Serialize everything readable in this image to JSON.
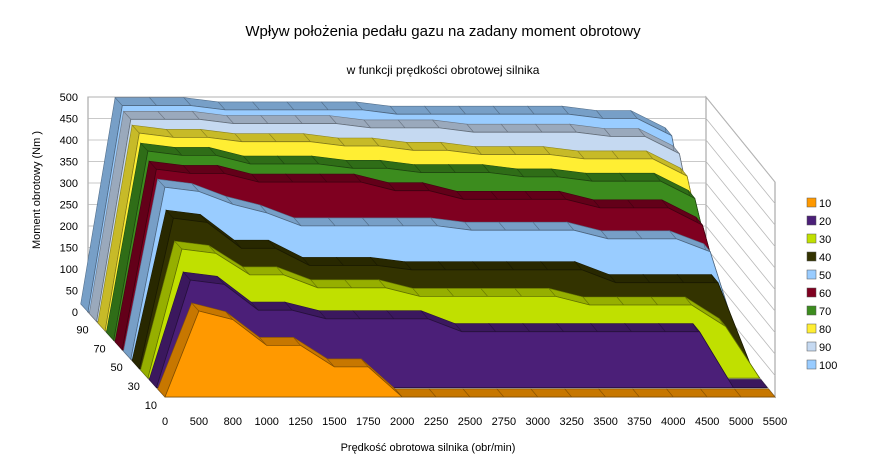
{
  "chart_data": {
    "type": "area-3d",
    "title": "Wpływ położenia pedału gazu na zadany moment obrotowy",
    "subtitle": "w funkcji prędkości obrotowej silnika",
    "xlabel": "Prędkość obrotowa silnika (obr/min)",
    "ylabel": "Moment obrotowy (Nm )",
    "zlabel": "",
    "categories": [
      "0",
      "500",
      "800",
      "1000",
      "1250",
      "1500",
      "1750",
      "2000",
      "2250",
      "2500",
      "2750",
      "3000",
      "3250",
      "3500",
      "3750",
      "4000",
      "4500",
      "5000",
      "5500"
    ],
    "ylim": [
      0,
      500
    ],
    "yticks": [
      "0",
      "50",
      "100",
      "150",
      "200",
      "250",
      "300",
      "350",
      "400",
      "450",
      "500"
    ],
    "depth_ticks": [
      "10",
      "30",
      "50",
      "70",
      "90"
    ],
    "series": [
      {
        "name": "10",
        "color": "#FF9900",
        "values": [
          0,
          200,
          180,
          120,
          120,
          70,
          70,
          0,
          0,
          0,
          0,
          0,
          0,
          0,
          0,
          0,
          0,
          0,
          0
        ]
      },
      {
        "name": "20",
        "color": "#4B1F78",
        "values": [
          0,
          250,
          240,
          180,
          180,
          160,
          160,
          160,
          160,
          130,
          130,
          130,
          130,
          130,
          130,
          130,
          130,
          0,
          0
        ]
      },
      {
        "name": "30",
        "color": "#C0E000",
        "values": [
          0,
          300,
          290,
          240,
          240,
          210,
          210,
          210,
          190,
          190,
          190,
          190,
          190,
          170,
          170,
          170,
          170,
          120,
          0
        ]
      },
      {
        "name": "40",
        "color": "#333300",
        "values": [
          0,
          350,
          340,
          280,
          280,
          240,
          240,
          240,
          230,
          230,
          230,
          230,
          230,
          230,
          200,
          200,
          200,
          200,
          0
        ]
      },
      {
        "name": "50",
        "color": "#99CCFF",
        "values": [
          0,
          400,
          390,
          360,
          340,
          310,
          310,
          310,
          310,
          310,
          300,
          300,
          300,
          300,
          280,
          280,
          280,
          250,
          0
        ]
      },
      {
        "name": "60",
        "color": "#7F0020",
        "values": [
          0,
          420,
          410,
          410,
          390,
          390,
          390,
          390,
          370,
          370,
          350,
          350,
          350,
          350,
          330,
          330,
          330,
          290,
          0
        ]
      },
      {
        "name": "70",
        "color": "#3C8C1E",
        "values": [
          0,
          440,
          430,
          430,
          410,
          410,
          410,
          400,
          400,
          390,
          390,
          390,
          380,
          380,
          370,
          370,
          370,
          330,
          0
        ]
      },
      {
        "name": "80",
        "color": "#FFEE33",
        "values": [
          0,
          460,
          450,
          450,
          440,
          440,
          440,
          430,
          430,
          420,
          420,
          410,
          410,
          410,
          400,
          400,
          400,
          360,
          0
        ]
      },
      {
        "name": "90",
        "color": "#C5D9F1",
        "values": [
          0,
          470,
          470,
          470,
          460,
          460,
          460,
          460,
          450,
          450,
          450,
          440,
          440,
          440,
          440,
          430,
          430,
          390,
          0
        ]
      },
      {
        "name": "100",
        "color": "#99CCFF",
        "values": [
          0,
          480,
          480,
          480,
          470,
          470,
          470,
          470,
          470,
          460,
          460,
          460,
          460,
          460,
          460,
          450,
          450,
          410,
          0
        ]
      }
    ],
    "legend": "right",
    "grid": true
  }
}
